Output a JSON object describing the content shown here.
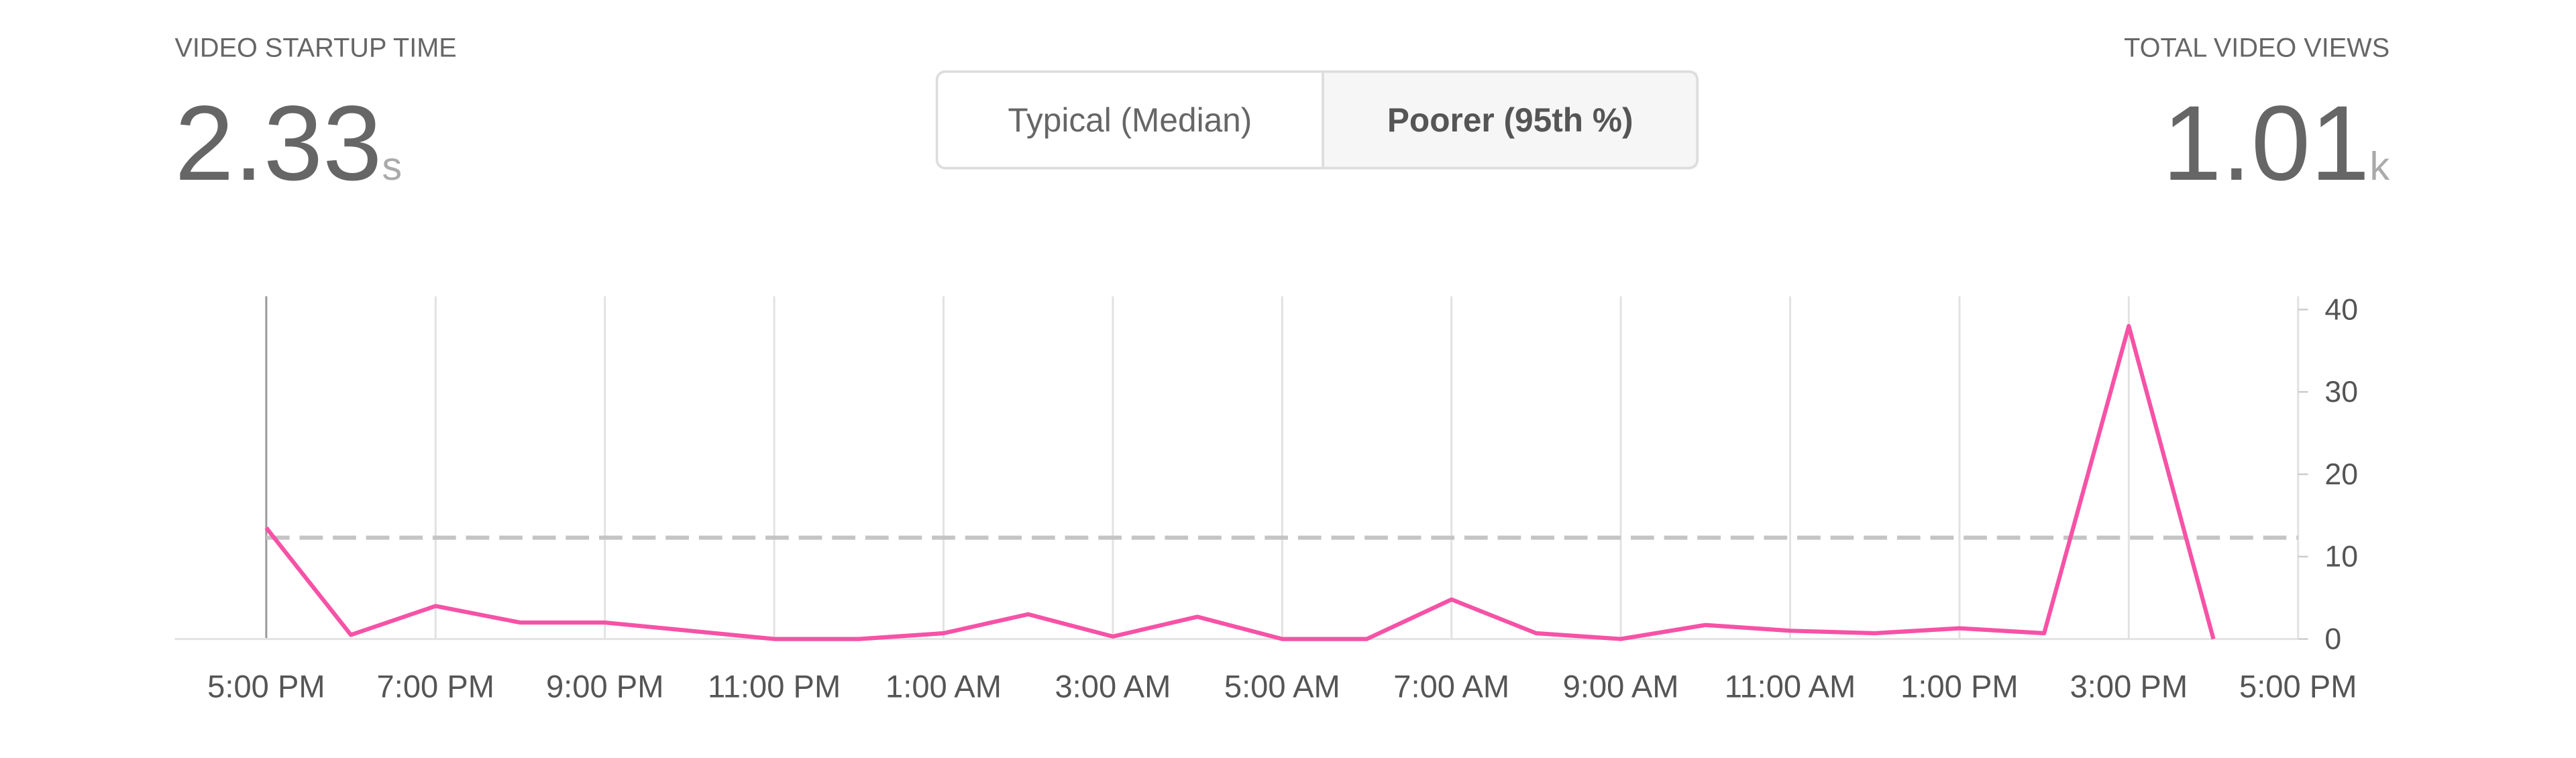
{
  "metrics": [
    {
      "label": "VIDEO STARTUP TIME",
      "value": "2.33",
      "unit": "s"
    },
    {
      "label": "TOTAL VIDEO VIEWS",
      "value": "1.01",
      "unit": "k"
    }
  ],
  "toggle": {
    "options": [
      "Typical (Median)",
      "Poorer (95th %)"
    ],
    "selected": 1
  },
  "chart_data": {
    "type": "line",
    "categories": [
      "5:00 PM",
      null,
      "7:00 PM",
      null,
      "9:00 PM",
      null,
      "11:00 PM",
      null,
      "1:00 AM",
      null,
      "3:00 AM",
      null,
      "5:00 AM",
      null,
      "7:00 AM",
      null,
      "9:00 AM",
      null,
      "11:00 AM",
      null,
      "1:00 PM",
      null,
      "3:00 PM",
      null,
      "5:00 PM"
    ],
    "values": [
      13.5,
      0.5,
      4,
      2,
      2,
      1,
      0,
      0,
      0.7,
      3,
      0.3,
      2.7,
      0,
      0,
      4.8,
      0.7,
      0,
      1.7,
      1,
      0.7,
      1.3,
      0.7,
      38,
      0,
      null
    ],
    "color": "#f652a6",
    "reference_line": 12.3,
    "ylim": [
      0,
      40
    ],
    "yticks": [
      0,
      10,
      20,
      30,
      40
    ]
  }
}
